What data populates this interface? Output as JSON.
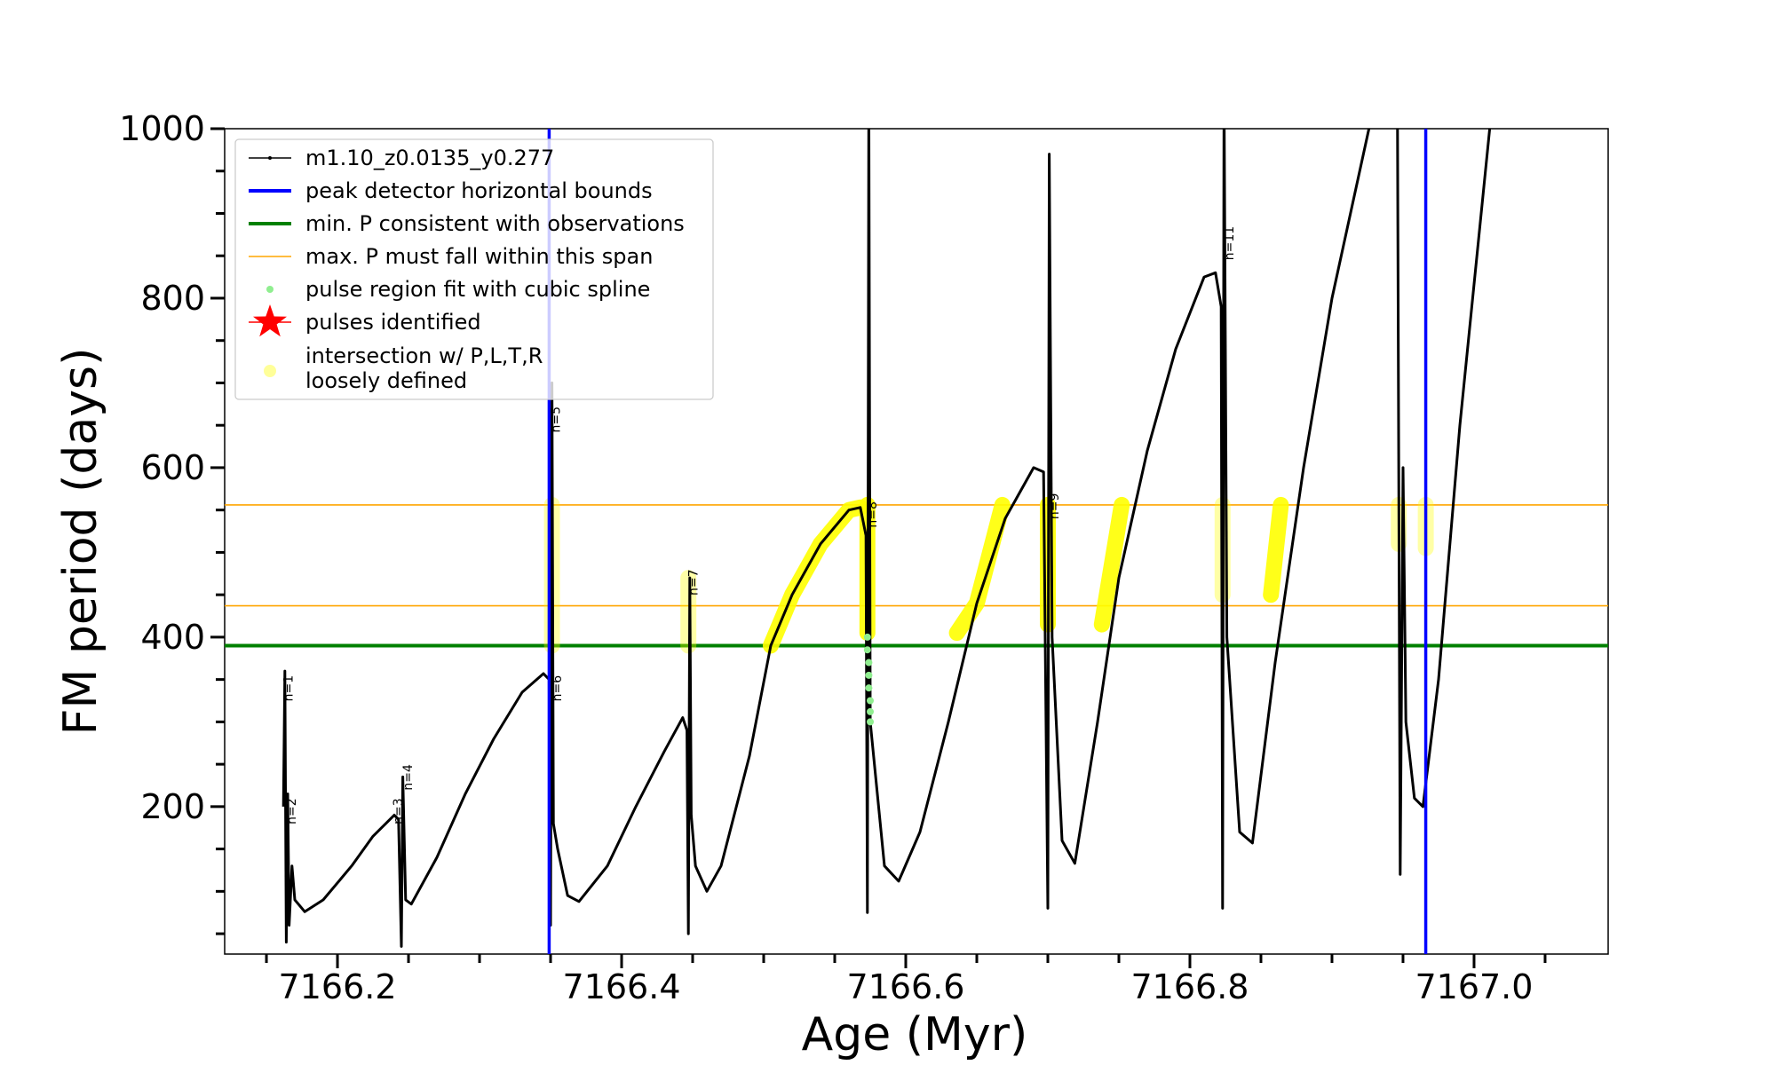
{
  "chart_data": {
    "type": "line",
    "xlabel": "Age (Myr)",
    "ylabel": "FM period (days)",
    "xlim": [
      7166.1206,
      7167.0944
    ],
    "ylim": [
      26,
      1000
    ],
    "xticks": [
      7166.2,
      7166.4,
      7166.6,
      7166.8,
      7167.0
    ],
    "xtick_labels": [
      "7166.2",
      "7166.4",
      "7166.6",
      "7166.8",
      "7167.0"
    ],
    "yticks": [
      200,
      400,
      600,
      800,
      1000
    ],
    "ytick_labels": [
      "200",
      "400",
      "600",
      "800",
      "1000"
    ],
    "legend_position": "upper-left",
    "legend": [
      {
        "label": "m1.10_z0.0135_y0.277",
        "kind": "line-dot",
        "color": "#000000"
      },
      {
        "label": "peak detector horizontal bounds",
        "kind": "line",
        "color": "#0000ff"
      },
      {
        "label": "min. P consistent with observations",
        "kind": "line",
        "color": "#008000"
      },
      {
        "label": "max. P must fall within this span",
        "kind": "thin-line",
        "color": "#ffa500"
      },
      {
        "label": "pulse region fit with cubic spline",
        "kind": "dot",
        "color": "#90ee90"
      },
      {
        "label": "pulses identified",
        "kind": "star",
        "color": "#ff0000"
      },
      {
        "label": "intersection w/ P,L,T,R",
        "label2": "loosely defined",
        "kind": "circle",
        "color": "#ffff99"
      }
    ],
    "series": [
      {
        "name": "m1.10_z0.0135_y0.277",
        "color": "#000000",
        "segments": [
          [
            [
              7166.162,
              200
            ],
            [
              7166.163,
              360
            ],
            [
              7166.164,
              40
            ],
            [
              7166.165,
              215
            ],
            [
              7166.166,
              60
            ],
            [
              7166.168,
              130
            ],
            [
              7166.17,
              90
            ],
            [
              7166.177,
              76
            ],
            [
              7166.19,
              90
            ],
            [
              7166.21,
              130
            ],
            [
              7166.225,
              165
            ],
            [
              7166.24,
              190
            ],
            [
              7166.243,
              185
            ],
            [
              7166.245,
              35
            ],
            [
              7166.246,
              235
            ],
            [
              7166.248,
              90
            ],
            [
              7166.252,
              85
            ],
            [
              7166.27,
              140
            ],
            [
              7166.29,
              215
            ],
            [
              7166.31,
              280
            ],
            [
              7166.33,
              335
            ],
            [
              7166.345,
              357
            ],
            [
              7166.349,
              350
            ],
            [
              7166.35,
              60
            ],
            [
              7166.351,
              700
            ],
            [
              7166.352,
              180
            ],
            [
              7166.355,
              150
            ],
            [
              7166.362,
              95
            ],
            [
              7166.37,
              88
            ],
            [
              7166.39,
              130
            ],
            [
              7166.41,
              200
            ],
            [
              7166.43,
              265
            ],
            [
              7166.443,
              305
            ],
            [
              7166.446,
              290
            ],
            [
              7166.447,
              50
            ],
            [
              7166.448,
              470
            ],
            [
              7166.449,
              190
            ],
            [
              7166.452,
              130
            ],
            [
              7166.46,
              100
            ],
            [
              7166.47,
              130
            ],
            [
              7166.49,
              260
            ],
            [
              7166.505,
              390
            ],
            [
              7166.52,
              450
            ],
            [
              7166.54,
              510
            ],
            [
              7166.56,
              550
            ],
            [
              7166.568,
              553
            ],
            [
              7166.572,
              520
            ],
            [
              7166.573,
              75
            ],
            [
              7166.574,
              1050
            ],
            [
              7166.575,
              300
            ],
            [
              7166.585,
              130
            ],
            [
              7166.595,
              112
            ],
            [
              7166.61,
              170
            ],
            [
              7166.63,
              300
            ],
            [
              7166.65,
              440
            ],
            [
              7166.67,
              540
            ],
            [
              7166.69,
              600
            ],
            [
              7166.697,
              595
            ],
            [
              7166.7,
              80
            ],
            [
              7166.701,
              970
            ],
            [
              7166.703,
              400
            ],
            [
              7166.71,
              160
            ],
            [
              7166.719,
              133
            ],
            [
              7166.735,
              300
            ],
            [
              7166.75,
              470
            ],
            [
              7166.77,
              620
            ],
            [
              7166.79,
              740
            ],
            [
              7166.81,
              825
            ],
            [
              7166.818,
              830
            ],
            [
              7166.822,
              790
            ],
            [
              7166.823,
              80
            ],
            [
              7166.824,
              1050
            ],
            [
              7166.826,
              400
            ],
            [
              7166.835,
              170
            ],
            [
              7166.844,
              157
            ],
            [
              7166.86,
              370
            ],
            [
              7166.88,
              600
            ],
            [
              7166.9,
              800
            ],
            [
              7166.926,
              1000
            ],
            [
              7166.94,
              1100
            ]
          ],
          [
            [
              7166.946,
              1050
            ],
            [
              7166.948,
              120
            ],
            [
              7166.95,
              600
            ],
            [
              7166.952,
              300
            ],
            [
              7166.958,
              210
            ],
            [
              7166.964,
              200
            ],
            [
              7166.975,
              350
            ],
            [
              7166.99,
              650
            ],
            [
              7167.011,
              1000
            ],
            [
              7167.02,
              1100
            ]
          ]
        ]
      }
    ],
    "vlines": [
      {
        "x": 7166.349,
        "color": "#0000ff"
      },
      {
        "x": 7166.966,
        "color": "#0000ff"
      }
    ],
    "hlines": [
      {
        "y": 390,
        "color": "#008000",
        "kind": "thick"
      },
      {
        "y": 437,
        "color": "#ffa500",
        "kind": "thin"
      },
      {
        "y": 556,
        "color": "#ffa500",
        "kind": "thin"
      }
    ],
    "highlights": [
      {
        "opacity": 0.35,
        "points": [
          [
            7166.351,
            390
          ],
          [
            7166.351,
            556
          ]
        ]
      },
      {
        "opacity": 0.35,
        "points": [
          [
            7166.447,
            390
          ],
          [
            7166.447,
            470
          ]
        ]
      },
      {
        "opacity": 0.9,
        "points": [
          [
            7166.505,
            390
          ],
          [
            7166.52,
            450
          ],
          [
            7166.54,
            510
          ],
          [
            7166.56,
            550
          ],
          [
            7166.568,
            553
          ]
        ]
      },
      {
        "opacity": 0.9,
        "points": [
          [
            7166.573,
            405
          ],
          [
            7166.573,
            556
          ]
        ]
      },
      {
        "opacity": 0.9,
        "points": [
          [
            7166.636,
            405
          ],
          [
            7166.65,
            440
          ],
          [
            7166.668,
            556
          ]
        ]
      },
      {
        "opacity": 0.9,
        "points": [
          [
            7166.7,
            415
          ],
          [
            7166.7,
            556
          ]
        ]
      },
      {
        "opacity": 0.9,
        "points": [
          [
            7166.738,
            415
          ],
          [
            7166.752,
            556
          ]
        ]
      },
      {
        "opacity": 0.35,
        "points": [
          [
            7166.823,
            450
          ],
          [
            7166.823,
            556
          ]
        ]
      },
      {
        "opacity": 0.9,
        "points": [
          [
            7166.857,
            450
          ],
          [
            7166.864,
            556
          ]
        ]
      },
      {
        "opacity": 0.35,
        "points": [
          [
            7166.947,
            510
          ],
          [
            7166.947,
            556
          ]
        ]
      },
      {
        "opacity": 0.35,
        "points": [
          [
            7166.966,
            505
          ],
          [
            7166.966,
            556
          ]
        ]
      }
    ],
    "spline_points": [
      [
        7166.573,
        400
      ],
      [
        7166.573,
        385
      ],
      [
        7166.574,
        370
      ],
      [
        7166.574,
        355
      ],
      [
        7166.574,
        340
      ],
      [
        7166.575,
        325
      ],
      [
        7166.575,
        312
      ],
      [
        7166.575,
        300
      ]
    ],
    "pulse_labels": [
      {
        "text": "n=1",
        "x": 7166.166,
        "y": 355,
        "color": "#000000"
      },
      {
        "text": "n=2",
        "x": 7166.168,
        "y": 210,
        "color": "#000000"
      },
      {
        "text": "n=3",
        "x": 7166.243,
        "y": 210,
        "color": "#000000"
      },
      {
        "text": "n=4",
        "x": 7166.25,
        "y": 250,
        "color": "#000000"
      },
      {
        "text": "n=5",
        "x": 7166.354,
        "y": 710,
        "color": "#cccccc"
      },
      {
        "text": "n=6",
        "x": 7166.355,
        "y": 355,
        "color": "#000000"
      },
      {
        "text": "n=7",
        "x": 7166.451,
        "y": 480,
        "color": "#000000"
      },
      {
        "text": "n=8",
        "x": 7166.577,
        "y": 560,
        "color": "#000000"
      },
      {
        "text": "n=9",
        "x": 7166.705,
        "y": 570,
        "color": "#000000"
      },
      {
        "text": "n=11",
        "x": 7166.828,
        "y": 885,
        "color": "#000000"
      }
    ]
  }
}
